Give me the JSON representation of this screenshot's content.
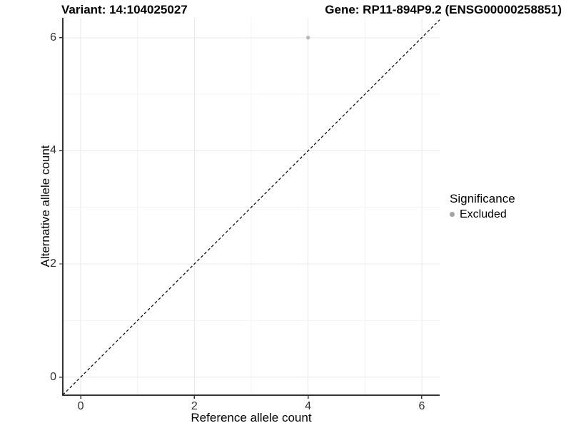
{
  "chart_data": {
    "type": "scatter",
    "title_left": "Variant: 14:104025027",
    "title_right": "Gene: RP11-894P9.2 (ENSG00000258851)",
    "xlabel": "Reference allele count",
    "ylabel": "Alternative allele count",
    "xlim": [
      -0.315,
      6.315
    ],
    "ylim": [
      -0.32,
      6.35
    ],
    "x_ticks": [
      0,
      2,
      4,
      6
    ],
    "y_ticks": [
      0,
      2,
      4,
      6
    ],
    "x_minor_ticks": [
      1,
      3,
      5
    ],
    "y_minor_ticks": [
      1,
      3,
      5
    ],
    "grid": "on",
    "series": [
      {
        "name": "Excluded",
        "points": [
          {
            "x": 4,
            "y": 6
          }
        ]
      }
    ],
    "reference_line": {
      "kind": "identity",
      "slope": 1,
      "intercept": 0,
      "style": "dashed"
    },
    "legend": {
      "position": "right",
      "title": "Significance",
      "items": [
        {
          "label": "Excluded",
          "color": "#a3a3a3"
        }
      ]
    },
    "colors": {
      "point": "#b9b9b9",
      "grid_major": "#e8e8e8",
      "grid_minor": "#f3f3f3",
      "axis_line": "#333333",
      "reference_line": "#000000",
      "tick_text": "#303030",
      "title_text": "#000000"
    }
  }
}
